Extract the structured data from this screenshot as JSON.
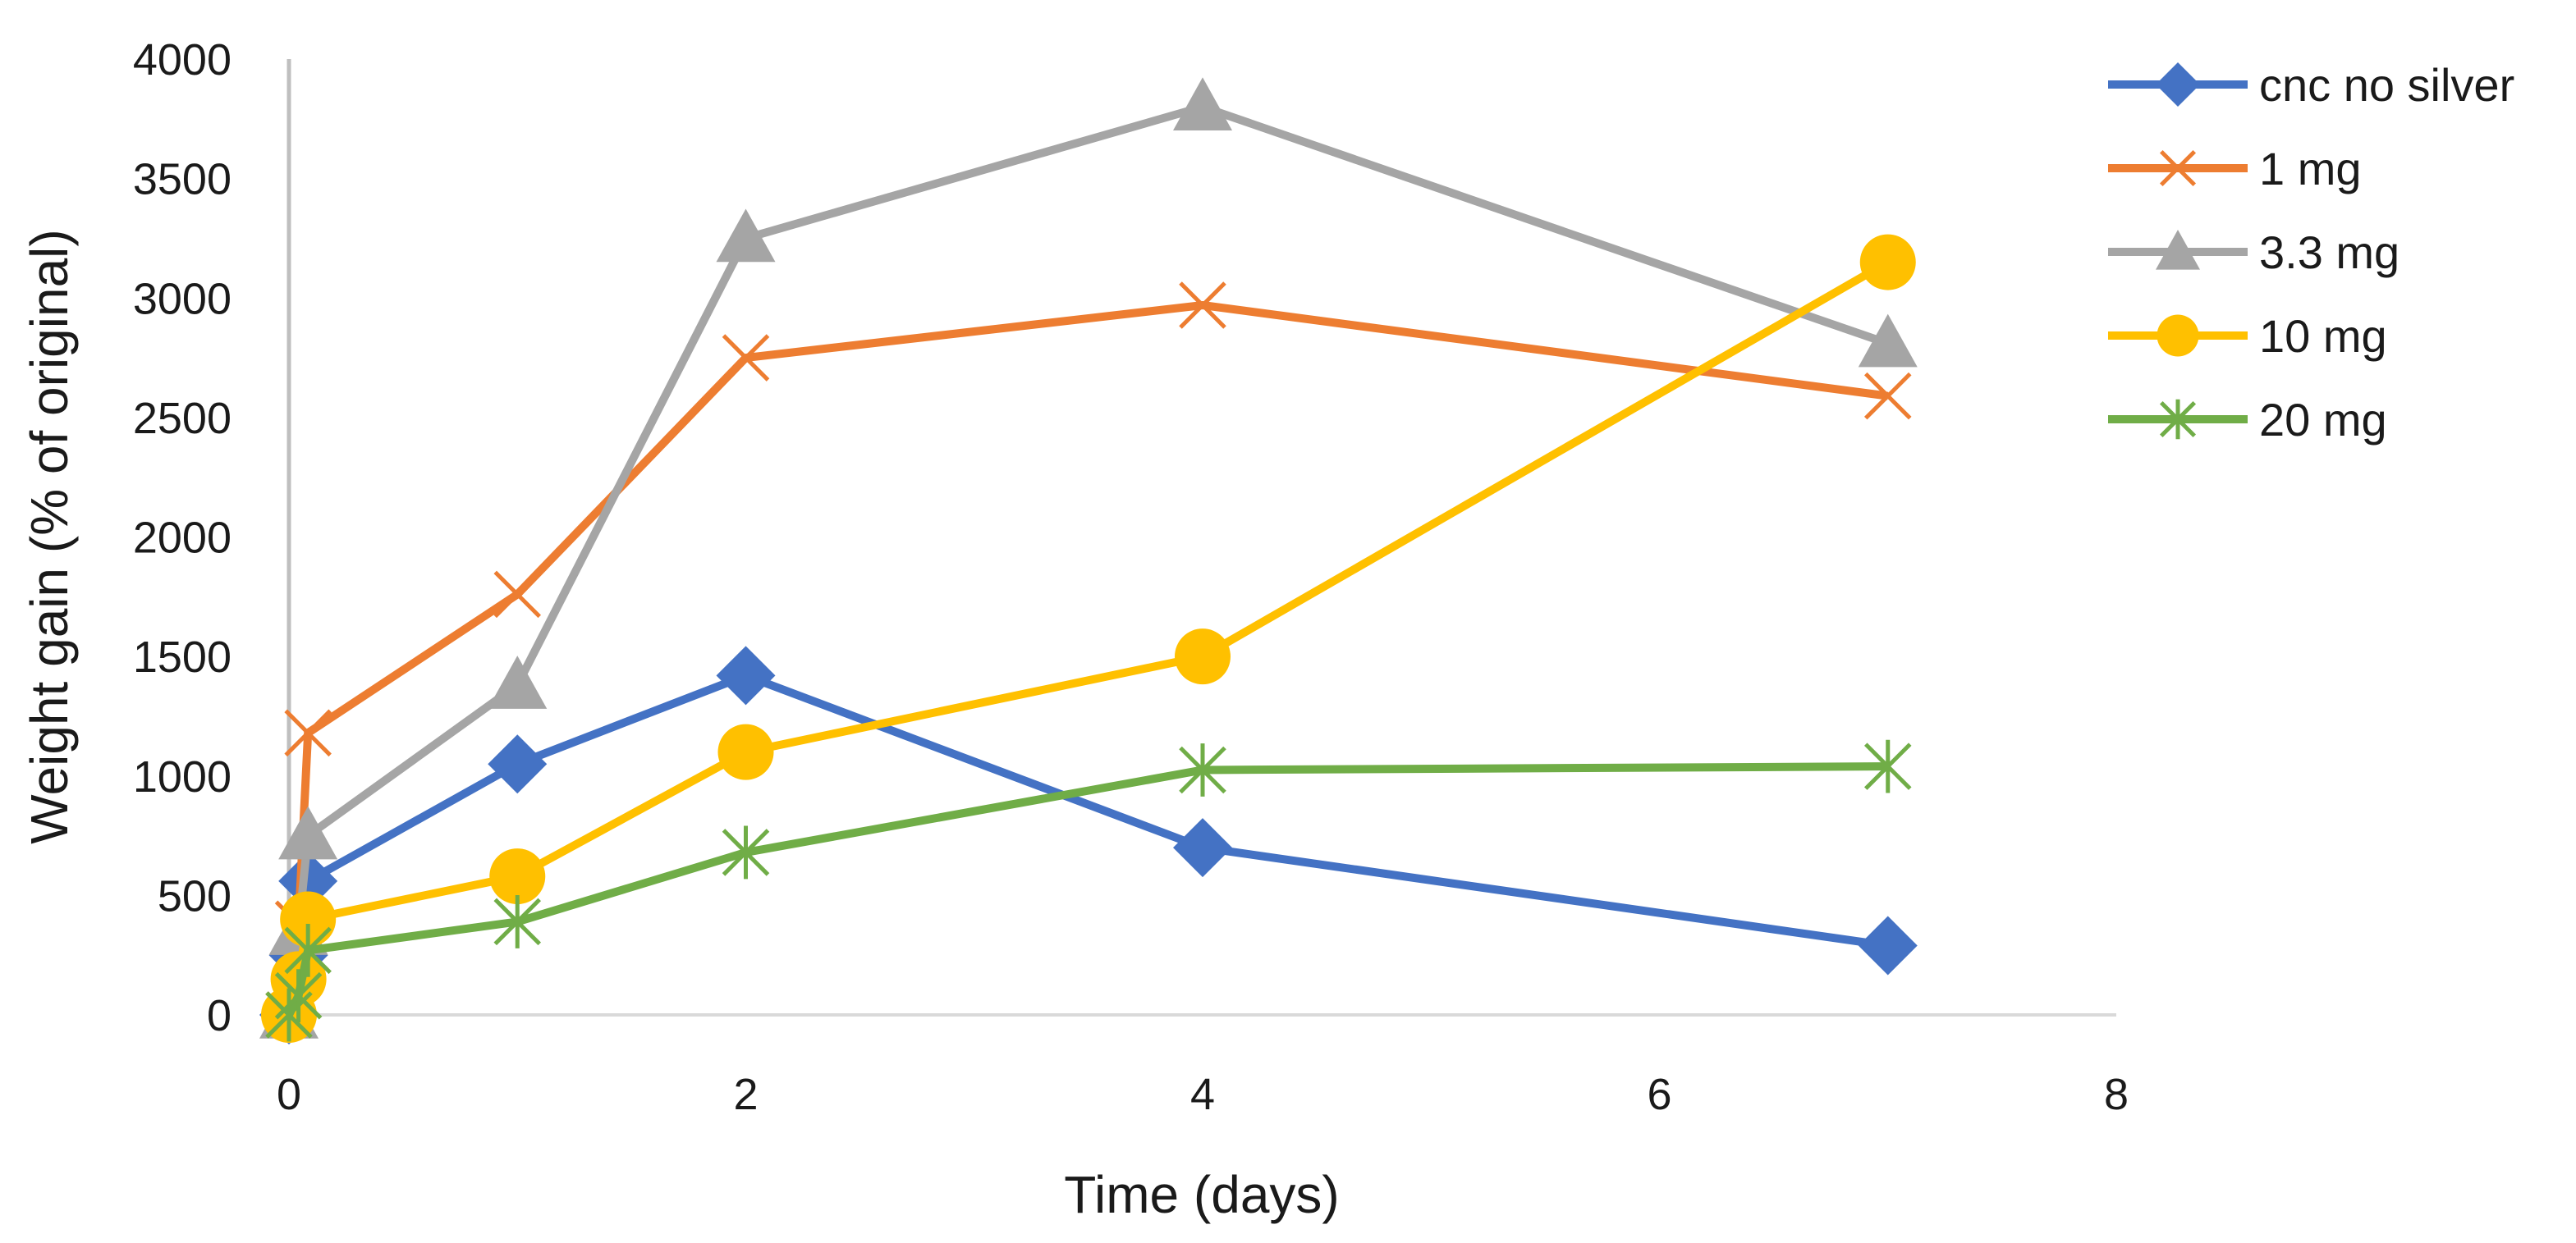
{
  "chart_data": {
    "type": "line",
    "title": "",
    "xlabel": "Time (days)",
    "ylabel": "Weight gain (% of original)",
    "xlim": [
      0,
      8
    ],
    "ylim": [
      0,
      4000
    ],
    "xticks": [
      0,
      2,
      4,
      6,
      8
    ],
    "yticks": [
      0,
      500,
      1000,
      1500,
      2000,
      2500,
      3000,
      3500,
      4000
    ],
    "grid": false,
    "legend_position": "right",
    "series": [
      {
        "name": "cnc no silver",
        "color": "#4472C4",
        "marker": "diamond",
        "x": [
          0,
          0.0417,
          0.0833,
          1,
          2,
          4,
          7
        ],
        "y": [
          0,
          250,
          560,
          1050,
          1420,
          700,
          290
        ]
      },
      {
        "name": "1 mg",
        "color": "#ED7D31",
        "marker": "x",
        "x": [
          0,
          0.0417,
          0.0833,
          1,
          2,
          4,
          7
        ],
        "y": [
          0,
          380,
          1180,
          1760,
          2750,
          2970,
          2590
        ]
      },
      {
        "name": "3.3 mg",
        "color": "#A5A5A5",
        "marker": "triangle",
        "x": [
          0,
          0.0417,
          0.0833,
          1,
          2,
          4,
          7
        ],
        "y": [
          0,
          350,
          750,
          1380,
          3250,
          3800,
          2810
        ]
      },
      {
        "name": "10 mg",
        "color": "#FFC000",
        "marker": "circle",
        "x": [
          0,
          0.0417,
          0.0833,
          1,
          2,
          4,
          7
        ],
        "y": [
          0,
          150,
          400,
          580,
          1100,
          1500,
          3150
        ]
      },
      {
        "name": "20 mg",
        "color": "#70AD47",
        "marker": "star",
        "x": [
          0,
          0.0417,
          0.0833,
          1,
          2,
          4,
          7
        ],
        "y": [
          0,
          80,
          270,
          390,
          680,
          1025,
          1040
        ]
      }
    ]
  }
}
